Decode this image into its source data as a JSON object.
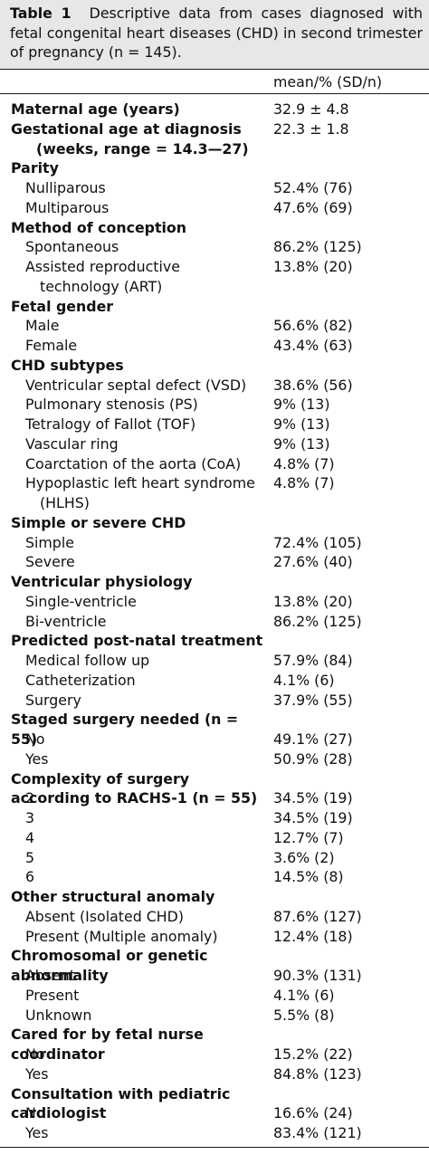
{
  "caption": {
    "label": "Table 1",
    "text": "Descriptive data from cases diagnosed with fetal congenital heart diseases (CHD) in second trimester of pregnancy (n = 145)."
  },
  "column_header": "mean/% (SD/n)",
  "rows": [
    {
      "kind": "head",
      "label": "Maternal age (years)",
      "value": "32.9 ± 4.8"
    },
    {
      "kind": "head",
      "label": "Gestational age at diagnosis",
      "cont": "(weeks, range = 14.3—27)",
      "value": "22.3 ± 1.8"
    },
    {
      "kind": "head",
      "label": "Parity"
    },
    {
      "kind": "sub",
      "label": "Nulliparous",
      "value": "52.4% (76)"
    },
    {
      "kind": "sub",
      "label": "Multiparous",
      "value": "47.6% (69)"
    },
    {
      "kind": "head",
      "label": "Method of conception"
    },
    {
      "kind": "sub",
      "label": "Spontaneous",
      "value": "86.2% (125)"
    },
    {
      "kind": "sub",
      "label": "Assisted reproductive",
      "cont": "technology (ART)",
      "value": "13.8% (20)"
    },
    {
      "kind": "head",
      "label": "Fetal gender"
    },
    {
      "kind": "sub",
      "label": "Male",
      "value": "56.6% (82)"
    },
    {
      "kind": "sub",
      "label": "Female",
      "value": "43.4% (63)"
    },
    {
      "kind": "head",
      "label": "CHD subtypes"
    },
    {
      "kind": "sub",
      "label": "Ventricular septal defect (VSD)",
      "value": "38.6% (56)"
    },
    {
      "kind": "sub",
      "label": "Pulmonary stenosis (PS)",
      "value": "9% (13)"
    },
    {
      "kind": "sub",
      "label": "Tetralogy of Fallot (TOF)",
      "value": "9% (13)"
    },
    {
      "kind": "sub",
      "label": "Vascular ring",
      "value": "9% (13)"
    },
    {
      "kind": "sub",
      "label": "Coarctation of the aorta (CoA)",
      "value": "4.8% (7)"
    },
    {
      "kind": "sub",
      "label": "Hypoplastic left heart syndrome",
      "cont": "(HLHS)",
      "value": "4.8% (7)"
    },
    {
      "kind": "head",
      "label": "Simple or severe CHD"
    },
    {
      "kind": "sub",
      "label": "Simple",
      "value": "72.4% (105)"
    },
    {
      "kind": "sub",
      "label": "Severe",
      "value": "27.6% (40)"
    },
    {
      "kind": "head",
      "label": "Ventricular physiology"
    },
    {
      "kind": "sub",
      "label": "Single-ventricle",
      "value": "13.8% (20)"
    },
    {
      "kind": "sub",
      "label": "Bi-ventricle",
      "value": "86.2% (125)"
    },
    {
      "kind": "head",
      "label": "Predicted post-natal treatment"
    },
    {
      "kind": "sub",
      "label": "Medical follow up",
      "value": "57.9% (84)"
    },
    {
      "kind": "sub",
      "label": "Catheterization",
      "value": "4.1% (6)"
    },
    {
      "kind": "sub",
      "label": "Surgery",
      "value": "37.9% (55)"
    },
    {
      "kind": "head",
      "label": "Staged surgery needed (n = 55)"
    },
    {
      "kind": "sub",
      "label": "No",
      "value": "49.1% (27)"
    },
    {
      "kind": "sub",
      "label": "Yes",
      "value": "50.9% (28)"
    },
    {
      "kind": "head",
      "label": "Complexity of surgery according to RACHS-1 (n = 55)"
    },
    {
      "kind": "sub",
      "label": "2",
      "value": "34.5% (19)"
    },
    {
      "kind": "sub",
      "label": "3",
      "value": "34.5% (19)"
    },
    {
      "kind": "sub",
      "label": "4",
      "value": "12.7% (7)"
    },
    {
      "kind": "sub",
      "label": "5",
      "value": "3.6% (2)"
    },
    {
      "kind": "sub",
      "label": "6",
      "value": "14.5% (8)"
    },
    {
      "kind": "head",
      "label": "Other structural anomaly"
    },
    {
      "kind": "sub",
      "label": "Absent (Isolated CHD)",
      "value": "87.6% (127)"
    },
    {
      "kind": "sub",
      "label": "Present (Multiple anomaly)",
      "value": "12.4% (18)"
    },
    {
      "kind": "head",
      "label": "Chromosomal or genetic abnormality"
    },
    {
      "kind": "sub",
      "label": "Absent",
      "value": "90.3% (131)"
    },
    {
      "kind": "sub",
      "label": "Present",
      "value": "4.1% (6)"
    },
    {
      "kind": "sub",
      "label": "Unknown",
      "value": "5.5% (8)"
    },
    {
      "kind": "head",
      "label": "Cared for by fetal nurse coordinator"
    },
    {
      "kind": "sub",
      "label": "No",
      "value": "15.2% (22)"
    },
    {
      "kind": "sub",
      "label": "Yes",
      "value": "84.8% (123)"
    },
    {
      "kind": "head",
      "label": "Consultation with pediatric cardiologist"
    },
    {
      "kind": "sub",
      "label": "No",
      "value": "16.6% (24)"
    },
    {
      "kind": "sub",
      "label": "Yes",
      "value": "83.4% (121)"
    }
  ]
}
